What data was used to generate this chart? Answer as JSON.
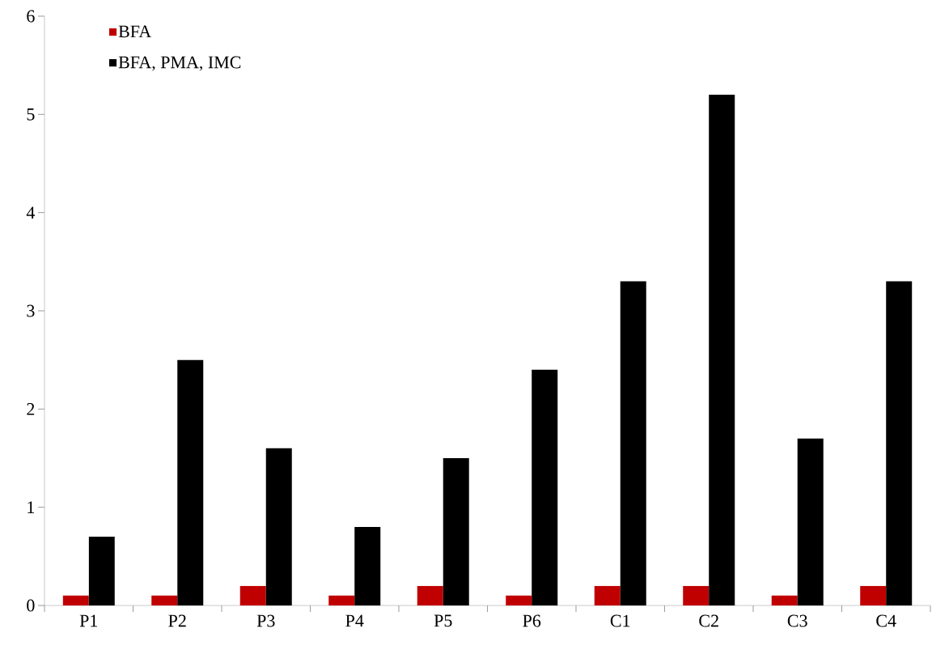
{
  "chart_data": {
    "type": "bar",
    "categories": [
      "P1",
      "P2",
      "P3",
      "P4",
      "P5",
      "P6",
      "C1",
      "C2",
      "C3",
      "C4"
    ],
    "series": [
      {
        "name": "BFA",
        "color": "#c00000",
        "values": [
          0.1,
          0.1,
          0.2,
          0.1,
          0.2,
          0.1,
          0.2,
          0.2,
          0.1,
          0.2
        ]
      },
      {
        "name": "BFA, PMA, IMC",
        "color": "#000000",
        "values": [
          0.7,
          2.5,
          1.6,
          0.8,
          1.5,
          2.4,
          3.3,
          5.2,
          1.7,
          3.3
        ]
      }
    ],
    "ylim": [
      0,
      6
    ],
    "yticks": [
      0,
      1,
      2,
      3,
      4,
      5,
      6
    ],
    "grid": false,
    "legend": "top left"
  }
}
